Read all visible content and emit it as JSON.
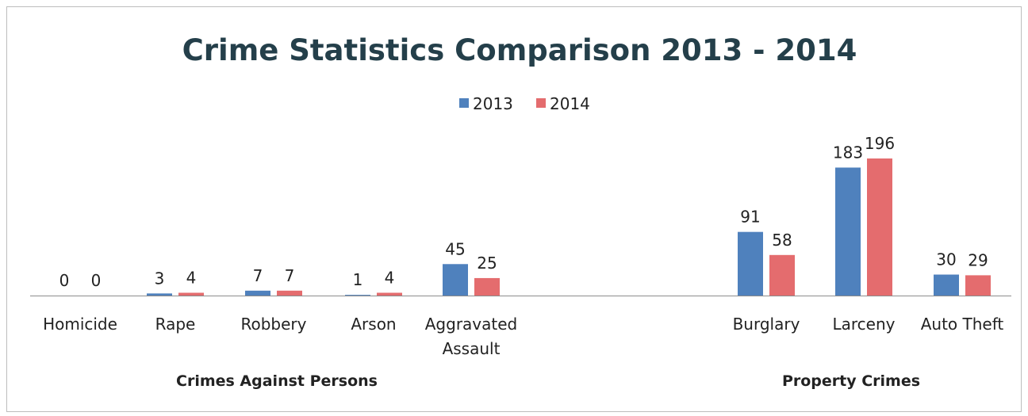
{
  "chart_data": {
    "type": "bar",
    "title": "Crime Statistics Comparison 2013 - 2014",
    "categories": [
      [
        "Homicide"
      ],
      [
        "Rape"
      ],
      [
        "Robbery"
      ],
      [
        "Arson"
      ],
      [
        "Aggravated",
        "Assault"
      ],
      [
        "Burglary"
      ],
      [
        "Larceny"
      ],
      [
        "Auto Theft"
      ]
    ],
    "groups": [
      {
        "label": "Crimes Against Persons",
        "categories": [
          0,
          1,
          2,
          3,
          4
        ]
      },
      {
        "label": "Property Crimes",
        "categories": [
          5,
          6,
          7
        ]
      }
    ],
    "series": [
      {
        "name": "2013",
        "color": "#4f81bd",
        "values": [
          0,
          3,
          7,
          1,
          45,
          91,
          183,
          30
        ]
      },
      {
        "name": "2014",
        "color": "#e46c6e",
        "values": [
          0,
          4,
          7,
          4,
          25,
          58,
          196,
          29
        ]
      }
    ],
    "xlabel": "",
    "ylabel": "",
    "ylim": [
      0,
      196
    ],
    "grid": false,
    "legend_position": "top"
  }
}
